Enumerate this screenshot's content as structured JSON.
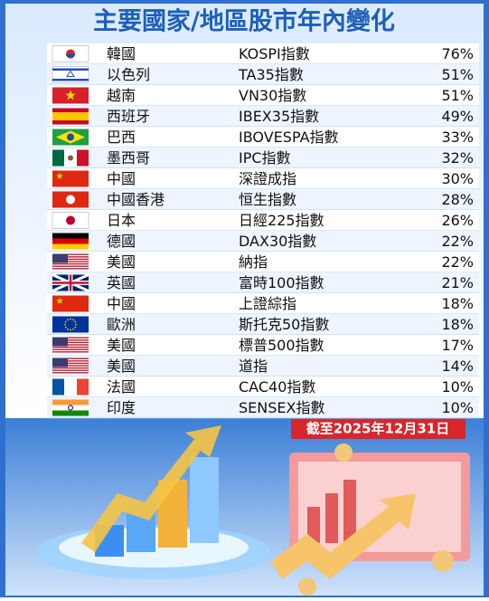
{
  "title": "主要國家/地區股市年內變化",
  "table": {
    "rows": [
      [
        "韓國",
        "KOSPI指數",
        "76%"
      ],
      [
        "以色列",
        "TA35指數",
        "51%"
      ],
      [
        "越南",
        "VN30指數",
        "51%"
      ],
      [
        "西班牙",
        "IBEX35指數",
        "49%"
      ],
      [
        "巴西",
        "IBOVESPA指數",
        "33%"
      ],
      [
        "墨西哥",
        "IPC指數",
        "32%"
      ],
      [
        "中國",
        "深證成指",
        "30%"
      ],
      [
        "中國香港",
        "恒生指數",
        "28%"
      ],
      [
        "日本",
        "日經225指數",
        "26%"
      ],
      [
        "德國",
        "DAX30指數",
        "22%"
      ],
      [
        "美國",
        "納指",
        "22%"
      ],
      [
        "英國",
        "富時100指數",
        "21%"
      ],
      [
        "中國",
        "上證綜指",
        "18%"
      ],
      [
        "歐洲",
        "斯托克50指數",
        "18%"
      ],
      [
        "美國",
        "標普500指數",
        "17%"
      ],
      [
        "美國",
        "道指",
        "14%"
      ],
      [
        "法國",
        "CAC40指數",
        "10%"
      ],
      [
        "印度",
        "SENSEX指數",
        "10%"
      ]
    ]
  },
  "footnote": "截至2025年12月31日"
}
